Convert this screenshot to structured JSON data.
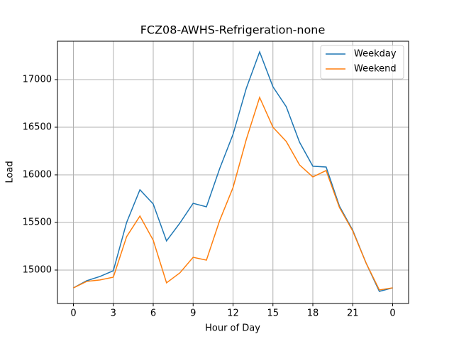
{
  "chart_data": {
    "type": "line",
    "title": "FCZ08-AWHS-Refrigeration-none",
    "x_label": "Hour of Day",
    "y_label": "Load",
    "x": [
      0,
      1,
      2,
      3,
      4,
      5,
      6,
      7,
      8,
      9,
      10,
      11,
      12,
      13,
      14,
      15,
      16,
      17,
      18,
      19,
      20,
      21,
      22,
      23,
      24
    ],
    "series": [
      {
        "name": "Weekday",
        "color": "#1f77b4",
        "values": [
          14813,
          14888,
          14933,
          14993,
          15500,
          15843,
          15694,
          15306,
          15493,
          15701,
          15664,
          16067,
          16425,
          16910,
          17291,
          16925,
          16716,
          16343,
          16090,
          16082,
          15672,
          15418,
          15075,
          14776,
          14813
        ]
      },
      {
        "name": "Weekend",
        "color": "#ff7f0e",
        "values": [
          14813,
          14881,
          14896,
          14925,
          15351,
          15567,
          15313,
          14866,
          14970,
          15134,
          15104,
          15522,
          15866,
          16373,
          16813,
          16500,
          16351,
          16104,
          15978,
          16045,
          15657,
          15410,
          15075,
          14791,
          14813
        ]
      }
    ],
    "xlim": [
      -1.2,
      25.2
    ],
    "ylim": [
      14649,
      17403
    ],
    "xticks": [
      0,
      3,
      6,
      9,
      12,
      15,
      18,
      21,
      {
        "value": 24,
        "label": "0"
      }
    ],
    "yticks": [
      15000,
      15500,
      16000,
      16500,
      17000
    ],
    "grid": true,
    "legend_position": "upper right"
  }
}
